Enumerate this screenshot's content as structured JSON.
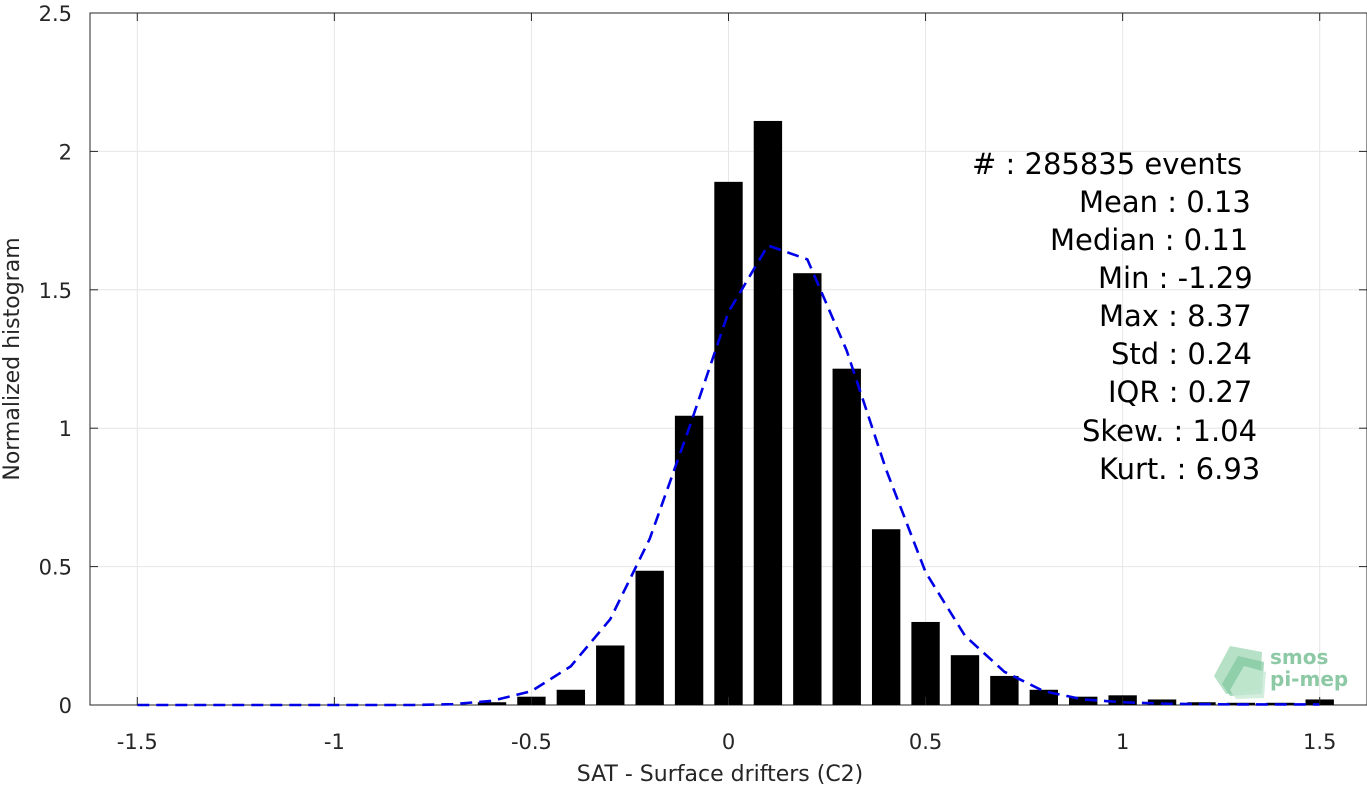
{
  "chart_data": {
    "type": "bar",
    "xlabel": "SAT - Surface drifters (C2)",
    "ylabel": "Normalized histogram",
    "xlim": [
      -1.62,
      1.62
    ],
    "ylim": [
      0,
      2.5
    ],
    "grid": true,
    "x_ticks": [
      -1.5,
      -1,
      -0.5,
      0,
      0.5,
      1,
      1.5
    ],
    "x_tick_labels": [
      "-1.5",
      "-1",
      "-0.5",
      "0",
      "0.5",
      "1",
      "1.5"
    ],
    "y_ticks": [
      0,
      0.5,
      1,
      1.5,
      2,
      2.5
    ],
    "y_tick_labels": [
      "0",
      "0.5",
      "1",
      "1.5",
      "2",
      "2.5"
    ],
    "bar_color": "#000000",
    "bars": {
      "x": [
        -0.6,
        -0.5,
        -0.4,
        -0.3,
        -0.2,
        -0.1,
        0.0,
        0.1,
        0.2,
        0.3,
        0.4,
        0.5,
        0.6,
        0.7,
        0.8,
        0.9,
        1.0,
        1.1,
        1.2,
        1.3,
        1.4,
        1.5
      ],
      "values": [
        0.01,
        0.03,
        0.055,
        0.215,
        0.485,
        1.045,
        1.89,
        2.11,
        1.56,
        1.215,
        0.635,
        0.3,
        0.18,
        0.105,
        0.055,
        0.03,
        0.035,
        0.02,
        0.01,
        0.008,
        0.008,
        0.02
      ]
    },
    "fit_curve": {
      "style": "dashed",
      "color": "#0000e6",
      "x": [
        -1.5,
        -1.4,
        -1.3,
        -1.2,
        -1.1,
        -1.0,
        -0.9,
        -0.8,
        -0.7,
        -0.6,
        -0.5,
        -0.4,
        -0.3,
        -0.2,
        -0.1,
        0.0,
        0.1,
        0.2,
        0.3,
        0.4,
        0.5,
        0.6,
        0.7,
        0.8,
        0.9,
        1.0,
        1.1,
        1.2,
        1.3,
        1.4,
        1.5
      ],
      "y": [
        0,
        0,
        0,
        0,
        0,
        0,
        0,
        0,
        0.003,
        0.015,
        0.05,
        0.14,
        0.31,
        0.6,
        1.0,
        1.42,
        1.66,
        1.61,
        1.28,
        0.85,
        0.48,
        0.25,
        0.12,
        0.05,
        0.02,
        0.01,
        0.005,
        0.003,
        0.002,
        0.002,
        0.002
      ]
    },
    "annotations": [
      "#  : 285835 events",
      "Mean : 0.13",
      "Median : 0.11",
      "Min : -1.29",
      "Max : 8.37",
      "Std : 0.24",
      "IQR : 0.27",
      "Skew. : 1.04",
      "Kurt. : 6.93"
    ]
  },
  "logo": {
    "line1": "smos",
    "line2": "pi-mep"
  }
}
